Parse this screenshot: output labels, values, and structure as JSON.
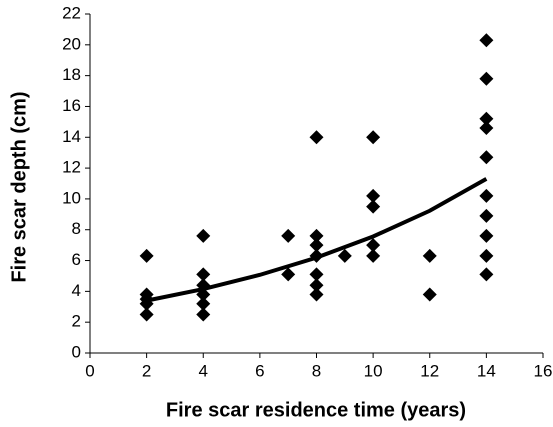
{
  "chart_data": {
    "type": "scatter",
    "x_label": "Fire scar residence time (years)",
    "y_label": "Fire scar depth (cm)",
    "xlim": [
      0,
      16
    ],
    "xticks": [
      0,
      2,
      4,
      6,
      8,
      10,
      12,
      14,
      16
    ],
    "ylim": [
      0,
      22
    ],
    "yticks": [
      0,
      2,
      4,
      6,
      8,
      10,
      12,
      14,
      16,
      18,
      20,
      22
    ],
    "series": [
      {
        "color": "#000000",
        "marker": "diamond",
        "x": [
          2,
          2,
          2,
          2,
          2,
          4,
          4,
          4,
          4,
          4,
          4,
          7,
          7,
          8,
          8,
          8,
          8,
          8,
          8,
          8,
          9,
          10,
          10,
          10,
          10,
          10,
          12,
          12,
          14,
          14,
          14,
          14,
          14,
          14,
          14,
          14,
          14,
          14
        ],
        "values": [
          6.3,
          3.8,
          3.5,
          3.2,
          2.5,
          7.6,
          5.1,
          4.4,
          3.8,
          3.2,
          2.5,
          7.6,
          5.1,
          14.0,
          7.6,
          7.0,
          6.3,
          5.1,
          4.4,
          3.8,
          6.3,
          14.0,
          10.2,
          9.5,
          7.0,
          6.3,
          6.3,
          3.8,
          20.3,
          17.8,
          15.2,
          14.6,
          12.7,
          10.2,
          8.9,
          7.6,
          6.3,
          5.1
        ]
      },
      {
        "color": "#000000",
        "style": "line",
        "x": [
          2,
          4,
          6,
          8,
          10,
          12,
          14
        ],
        "values": [
          3.4,
          4.15,
          5.07,
          6.19,
          7.56,
          9.23,
          11.3
        ]
      }
    ]
  }
}
